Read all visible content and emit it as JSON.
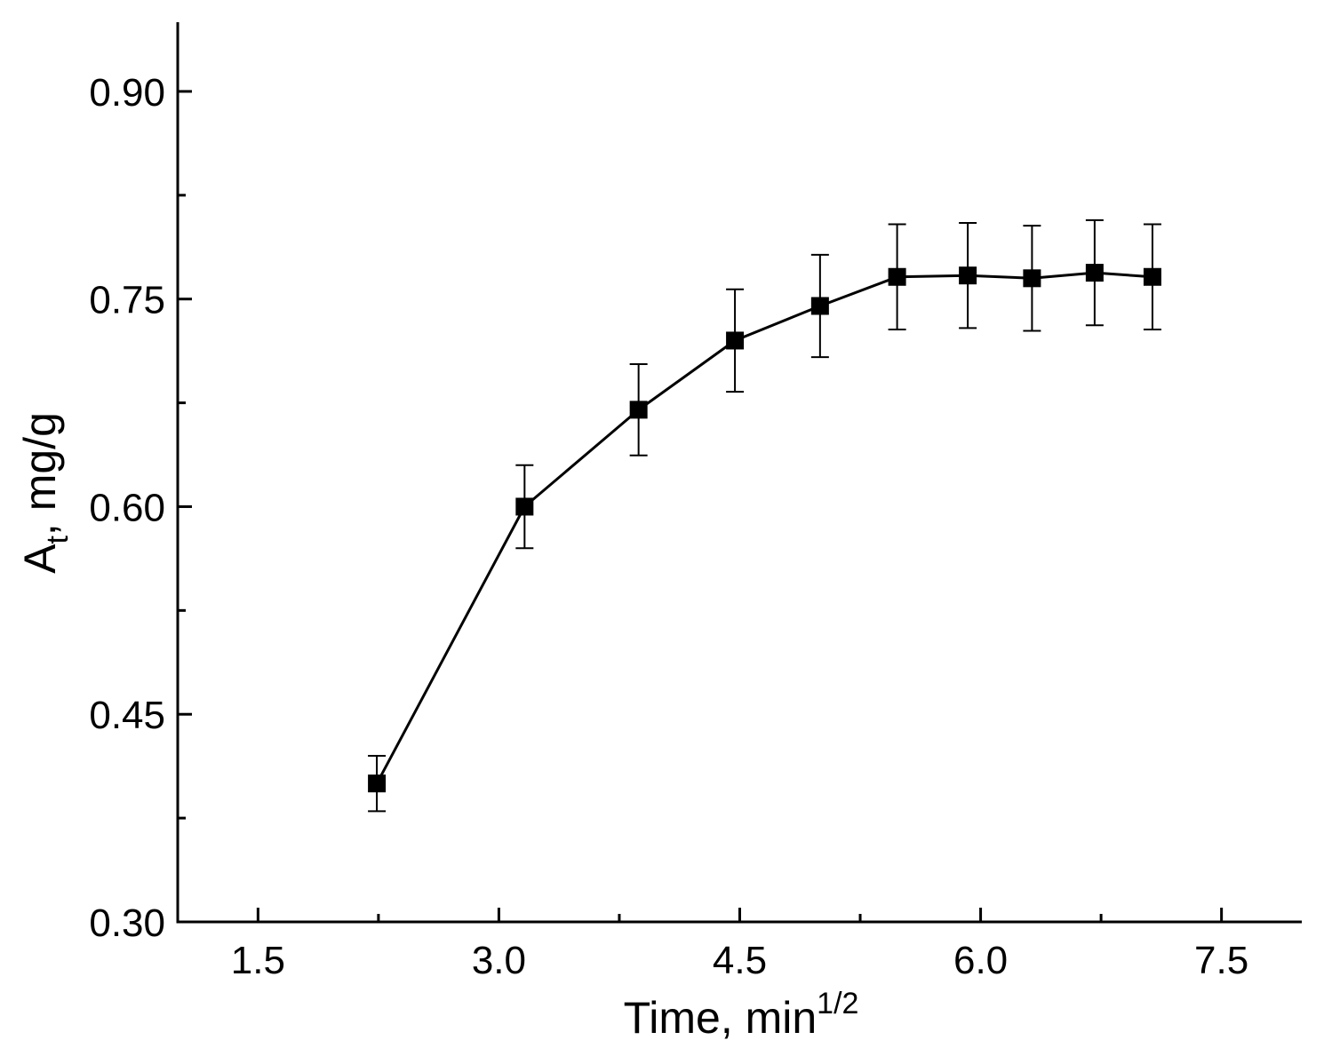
{
  "chart_data": {
    "type": "line",
    "title": "",
    "xlabel": {
      "main": "Time, min",
      "superscript": "1/2"
    },
    "ylabel": {
      "main": "A",
      "subscript": "t",
      "suffix": ", mg/g"
    },
    "xlim": [
      1.0,
      8.0
    ],
    "ylim": [
      0.3,
      0.95
    ],
    "x_ticks": [
      1.5,
      3.0,
      4.5,
      6.0,
      7.5
    ],
    "x_tick_labels": [
      "1.5",
      "3.0",
      "4.5",
      "6.0",
      "7.5"
    ],
    "x_minor_ticks": [
      2.25,
      3.75,
      5.25,
      6.75
    ],
    "y_ticks": [
      0.3,
      0.45,
      0.6,
      0.75,
      0.9
    ],
    "y_tick_labels": [
      "0.30",
      "0.45",
      "0.60",
      "0.75",
      "0.90"
    ],
    "y_minor_ticks": [
      0.375,
      0.525,
      0.675,
      0.825
    ],
    "grid": false,
    "legend": "none",
    "marker": "square",
    "color": "#000000",
    "series": [
      {
        "name": "A_t",
        "x": [
          2.24,
          3.16,
          3.87,
          4.47,
          5.0,
          5.48,
          5.92,
          6.32,
          6.71,
          7.07
        ],
        "y": [
          0.4,
          0.6,
          0.67,
          0.72,
          0.745,
          0.766,
          0.767,
          0.765,
          0.769,
          0.766
        ],
        "error": [
          0.02,
          0.03,
          0.033,
          0.037,
          0.037,
          0.038,
          0.038,
          0.038,
          0.038,
          0.038
        ]
      }
    ]
  }
}
